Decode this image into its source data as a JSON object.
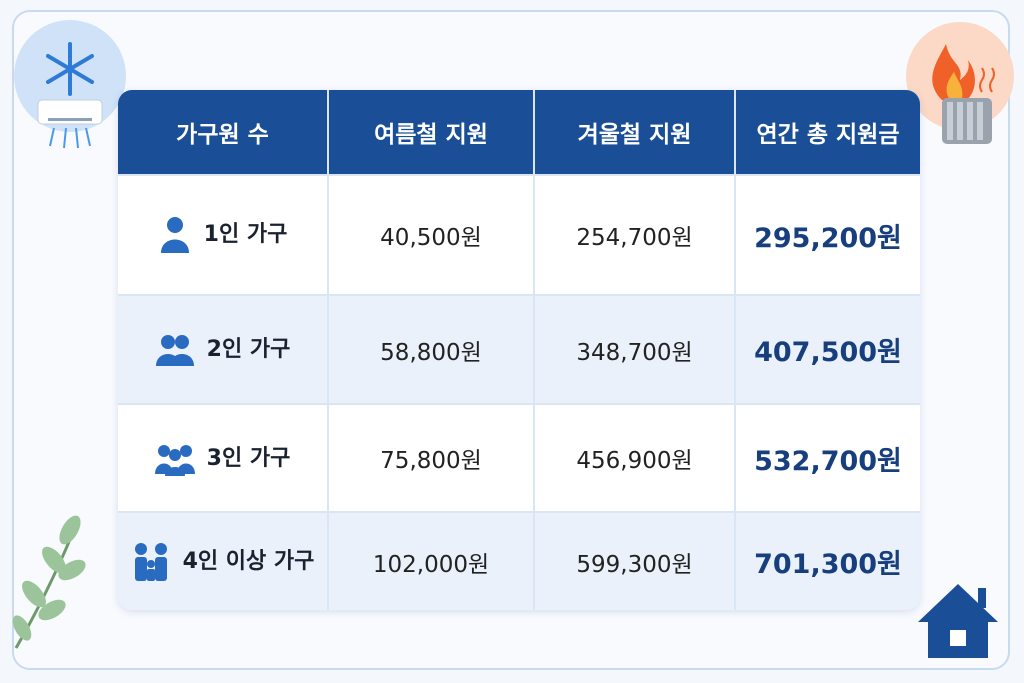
{
  "table": {
    "header": [
      "가구원 수",
      "여름철 지원",
      "겨울철 지원",
      "연간 총 지원금"
    ],
    "rows": [
      [
        "1인 가구",
        "40,500원",
        "254,700원",
        "295,200원"
      ],
      [
        "2인 가구",
        "58,800원",
        "348,700원",
        "407,500원"
      ],
      [
        "3인 가구",
        "75,800원",
        "456,900원",
        "532,700원"
      ],
      [
        "4인 이상 가구",
        "102,000원",
        "599,300원",
        "701,300원"
      ]
    ]
  }
}
